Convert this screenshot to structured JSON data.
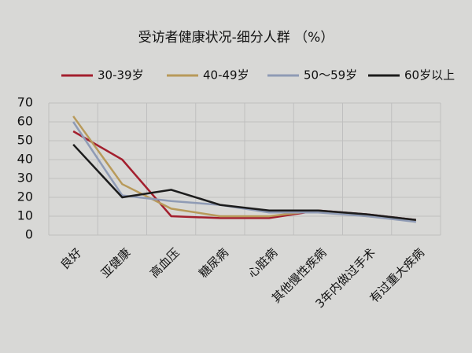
{
  "chart_data": {
    "type": "line",
    "title": "受访者健康状况-细分人群 （%）",
    "categories": [
      "良好",
      "亚健康",
      "高血压",
      "糖尿病",
      "心脏病",
      "其他慢性疾病",
      "3年内做过手术",
      "有过重大疾病"
    ],
    "series": [
      {
        "name": "30-39岁",
        "color": "#a31f2e",
        "values": [
          55,
          40,
          10,
          9,
          9,
          13,
          11,
          8
        ]
      },
      {
        "name": "40-49岁",
        "color": "#b89a5a",
        "values": [
          63,
          27,
          14,
          10,
          10,
          13,
          10,
          8
        ]
      },
      {
        "name": "50～59岁",
        "color": "#8f9bb5",
        "values": [
          60,
          21,
          18,
          16,
          12,
          12,
          10,
          7
        ]
      },
      {
        "name": "60岁以上",
        "color": "#1c1c1c",
        "values": [
          48,
          20,
          24,
          16,
          13,
          13,
          11,
          8
        ]
      }
    ],
    "ylim": [
      0,
      70
    ],
    "yticks": [
      0,
      10,
      20,
      30,
      40,
      50,
      60,
      70
    ],
    "grid": true
  }
}
